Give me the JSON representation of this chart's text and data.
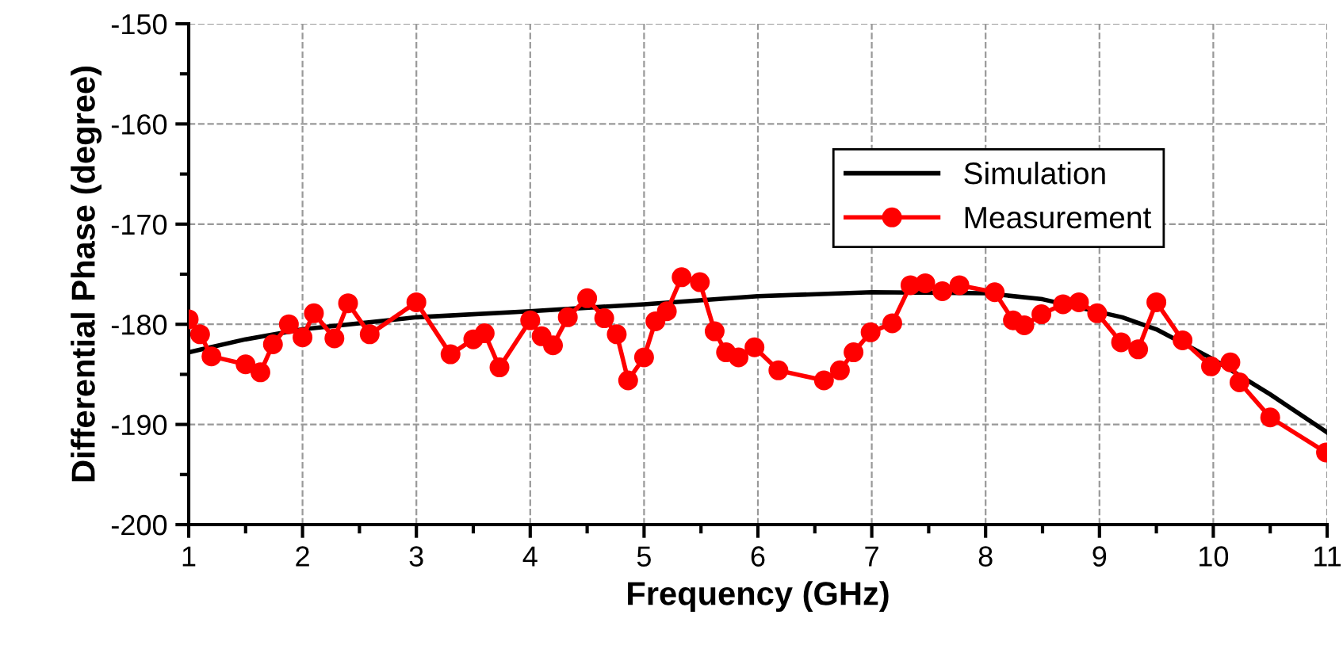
{
  "chart_data": {
    "type": "line",
    "xlabel": "Frequency (GHz)",
    "ylabel": "Differential Phase (degree)",
    "xlim": [
      1,
      11
    ],
    "xticks": [
      1,
      2,
      3,
      4,
      5,
      6,
      7,
      8,
      9,
      10,
      11
    ],
    "ylim": [
      -200,
      -150
    ],
    "yticks": [
      -200,
      -190,
      -180,
      -170,
      -160,
      -150
    ],
    "grid": true,
    "legend": "top right",
    "series": [
      {
        "name": "Simulation",
        "color": "#000000",
        "marker": "none",
        "x": [
          1,
          1.5,
          2,
          3,
          4,
          5,
          6,
          7,
          8,
          8.5,
          9.2,
          9.5,
          10,
          10.5,
          11
        ],
        "values": [
          -182.8,
          -181.5,
          -180.5,
          -179.3,
          -178.7,
          -178,
          -177.2,
          -176.8,
          -176.9,
          -177.5,
          -179.3,
          -180.5,
          -183.5,
          -187,
          -190.8
        ]
      },
      {
        "name": "Measurement",
        "color": "#ff0000",
        "marker": "circle",
        "x": [
          1.0,
          1.1,
          1.2,
          1.5,
          1.63,
          1.74,
          1.88,
          2.0,
          2.1,
          2.28,
          2.4,
          2.59,
          3.0,
          3.3,
          3.5,
          3.6,
          3.73,
          4.0,
          4.1,
          4.2,
          4.33,
          4.5,
          4.65,
          4.76,
          4.86,
          5.0,
          5.1,
          5.2,
          5.33,
          5.49,
          5.62,
          5.72,
          5.83,
          5.97,
          6.18,
          6.58,
          6.72,
          6.84,
          6.99,
          7.18,
          7.34,
          7.47,
          7.62,
          7.77,
          8.08,
          8.24,
          8.34,
          8.49,
          8.68,
          8.82,
          8.98,
          9.19,
          9.34,
          9.5,
          9.73,
          9.98,
          10.15,
          10.23,
          10.5,
          10.99
        ],
        "values": [
          -179.5,
          -181,
          -183.2,
          -184,
          -184.8,
          -182,
          -180,
          -181.3,
          -178.9,
          -181.4,
          -177.9,
          -181,
          -177.8,
          -183,
          -181.5,
          -180.9,
          -184.3,
          -179.6,
          -181.2,
          -182.1,
          -179.3,
          -177.4,
          -179.4,
          -181,
          -185.6,
          -183.3,
          -179.7,
          -178.7,
          -175.3,
          -175.8,
          -180.7,
          -182.8,
          -183.3,
          -182.3,
          -184.6,
          -185.6,
          -184.6,
          -182.8,
          -180.8,
          -179.9,
          -176.1,
          -175.9,
          -176.7,
          -176.1,
          -176.8,
          -179.6,
          -180.1,
          -179,
          -178,
          -177.8,
          -178.9,
          -181.8,
          -182.5,
          -177.8,
          -181.6,
          -184.2,
          -183.8,
          -185.8,
          -189.3,
          -192.8
        ]
      }
    ]
  }
}
